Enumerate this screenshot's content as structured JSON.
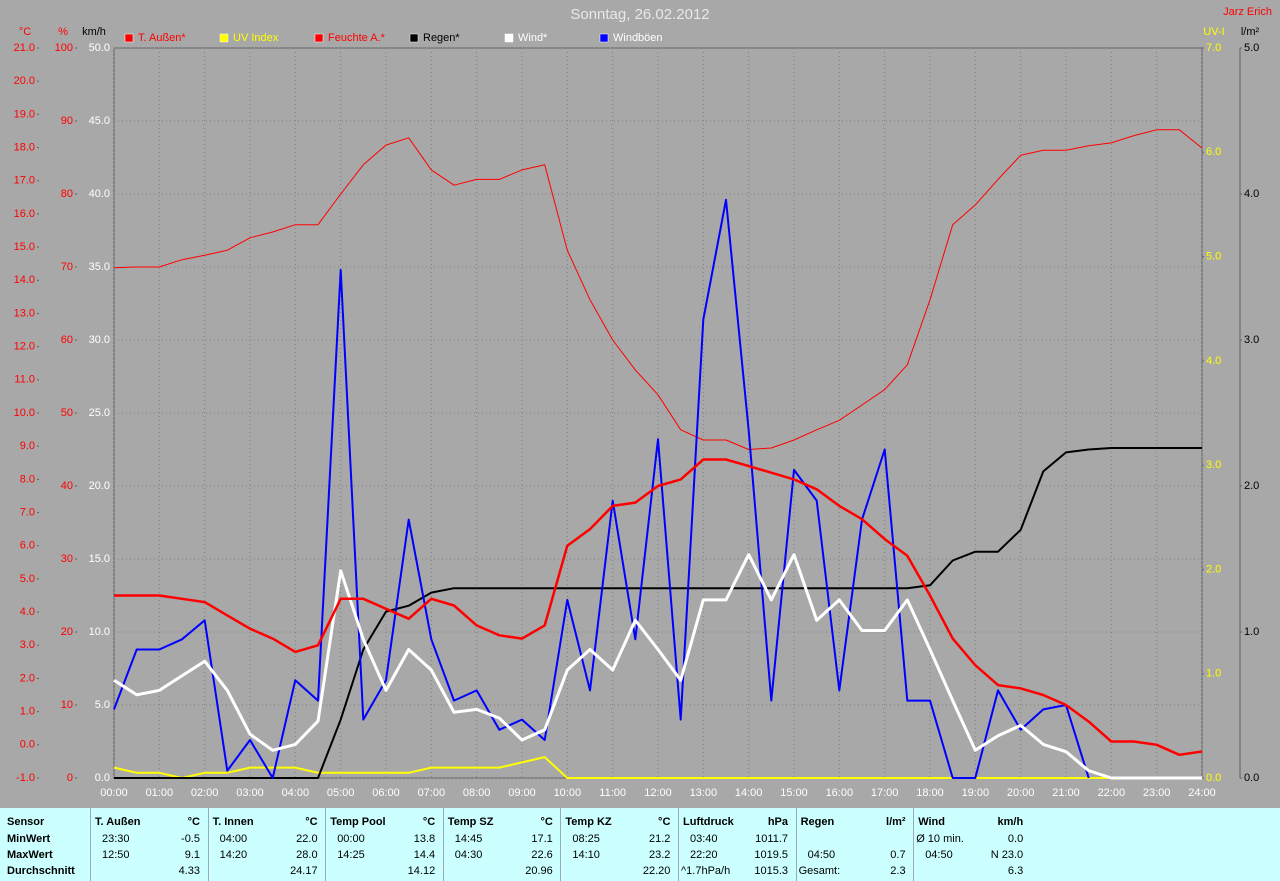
{
  "header": {
    "title": "Sonntag, 26.02.2012",
    "author": "Jarz Erich"
  },
  "chart_data": {
    "type": "line",
    "legend": "top",
    "grid": true,
    "x": [
      0,
      0.5,
      1,
      1.5,
      2,
      2.5,
      3,
      3.5,
      4,
      4.5,
      5,
      5.5,
      6,
      6.5,
      7,
      7.5,
      8,
      8.5,
      9,
      9.5,
      10,
      10.5,
      11,
      11.5,
      12,
      12.5,
      13,
      13.5,
      14,
      14.5,
      15,
      15.5,
      16,
      16.5,
      17,
      17.5,
      18,
      18.5,
      19,
      19.5,
      20,
      20.5,
      21,
      21.5,
      22,
      22.5,
      23,
      23.5,
      24
    ],
    "xlim": [
      0,
      24
    ],
    "xticks": [
      {
        "value": 0,
        "label": "00:00"
      },
      {
        "value": 1,
        "label": "01:00"
      },
      {
        "value": 2,
        "label": "02:00"
      },
      {
        "value": 3,
        "label": "03:00"
      },
      {
        "value": 4,
        "label": "04:00"
      },
      {
        "value": 5,
        "label": "05:00"
      },
      {
        "value": 6,
        "label": "06:00"
      },
      {
        "value": 7,
        "label": "07:00"
      },
      {
        "value": 8,
        "label": "08:00"
      },
      {
        "value": 9,
        "label": "09:00"
      },
      {
        "value": 10,
        "label": "10:00"
      },
      {
        "value": 11,
        "label": "11:00"
      },
      {
        "value": 12,
        "label": "12:00"
      },
      {
        "value": 13,
        "label": "13:00"
      },
      {
        "value": 14,
        "label": "14:00"
      },
      {
        "value": 15,
        "label": "15:00"
      },
      {
        "value": 16,
        "label": "16:00"
      },
      {
        "value": 17,
        "label": "17:00"
      },
      {
        "value": 18,
        "label": "18:00"
      },
      {
        "value": 19,
        "label": "19:00"
      },
      {
        "value": 20,
        "label": "20:00"
      },
      {
        "value": 21,
        "label": "21:00"
      },
      {
        "value": 22,
        "label": "22:00"
      },
      {
        "value": 23,
        "label": "23:00"
      },
      {
        "value": 24,
        "label": "24:00"
      }
    ],
    "y_label": "°C",
    "ylim": [
      -1,
      21
    ],
    "yticks": [
      {
        "value": -1,
        "label": "-1.0"
      },
      {
        "value": 0,
        "label": "0.0"
      },
      {
        "value": 1,
        "label": "1.0"
      },
      {
        "value": 2,
        "label": "2.0"
      },
      {
        "value": 3,
        "label": "3.0"
      },
      {
        "value": 4,
        "label": "4.0"
      },
      {
        "value": 5,
        "label": "5.0"
      },
      {
        "value": 6,
        "label": "6.0"
      },
      {
        "value": 7,
        "label": "7.0"
      },
      {
        "value": 8,
        "label": "8.0"
      },
      {
        "value": 9,
        "label": "9.0"
      },
      {
        "value": 10,
        "label": "10.0"
      },
      {
        "value": 11,
        "label": "11.0"
      },
      {
        "value": 12,
        "label": "12.0"
      },
      {
        "value": 13,
        "label": "13.0"
      },
      {
        "value": 14,
        "label": "14.0"
      },
      {
        "value": 15,
        "label": "15.0"
      },
      {
        "value": 16,
        "label": "16.0"
      },
      {
        "value": 17,
        "label": "17.0"
      },
      {
        "value": 18,
        "label": "18.0"
      },
      {
        "value": 19,
        "label": "19.0"
      },
      {
        "value": 20,
        "label": "20.0"
      },
      {
        "value": 21,
        "label": "21.0"
      }
    ],
    "y2_label": "%",
    "y2lim": [
      0,
      100
    ],
    "y2ticks": [
      0,
      10,
      20,
      30,
      40,
      50,
      60,
      70,
      80,
      90,
      100
    ],
    "y3_label": "km/h",
    "y3lim": [
      0,
      50
    ],
    "y3ticks": [
      {
        "value": 0,
        "label": "0.0"
      },
      {
        "value": 5,
        "label": "5.0"
      },
      {
        "value": 10,
        "label": "10.0"
      },
      {
        "value": 15,
        "label": "15.0"
      },
      {
        "value": 20,
        "label": "20.0"
      },
      {
        "value": 25,
        "label": "25.0"
      },
      {
        "value": 30,
        "label": "30.0"
      },
      {
        "value": 35,
        "label": "35.0"
      },
      {
        "value": 40,
        "label": "40.0"
      },
      {
        "value": 45,
        "label": "45.0"
      },
      {
        "value": 50,
        "label": "50.0"
      }
    ],
    "y4_label": "UV-I",
    "y4lim": [
      0,
      7
    ],
    "y4ticks": [
      {
        "value": 0,
        "label": "0.0"
      },
      {
        "value": 1,
        "label": "1.0"
      },
      {
        "value": 2,
        "label": "2.0"
      },
      {
        "value": 3,
        "label": "3.0"
      },
      {
        "value": 4,
        "label": "4.0"
      },
      {
        "value": 5,
        "label": "5.0"
      },
      {
        "value": 6,
        "label": "6.0"
      },
      {
        "value": 7,
        "label": "7.0"
      }
    ],
    "y5_label": "l/m²",
    "y5lim": [
      0,
      5
    ],
    "y5ticks": [
      {
        "value": 0,
        "label": "0.0"
      },
      {
        "value": 1,
        "label": "1.0"
      },
      {
        "value": 2,
        "label": "2.0"
      },
      {
        "value": 3,
        "label": "3.0"
      },
      {
        "value": 4,
        "label": "4.0"
      },
      {
        "value": 5,
        "label": "5.0"
      }
    ],
    "series": [
      {
        "name": "T. Außen*",
        "color": "#ff0000",
        "label_color": "#ff0000",
        "line_width": 2.5,
        "axis": "y",
        "values": [
          4.5,
          4.5,
          4.5,
          4.4,
          4.3,
          3.9,
          3.5,
          3.2,
          2.8,
          3.0,
          4.4,
          4.4,
          4.1,
          3.8,
          4.4,
          4.2,
          3.6,
          3.3,
          3.2,
          3.6,
          6.0,
          6.5,
          7.2,
          7.3,
          7.8,
          8.0,
          8.6,
          8.6,
          8.4,
          8.2,
          8.0,
          7.7,
          7.2,
          6.8,
          6.2,
          5.7,
          4.5,
          3.2,
          2.4,
          1.8,
          1.7,
          1.5,
          1.2,
          0.7,
          0.1,
          0.1,
          0.0,
          -0.3,
          -0.2
        ]
      },
      {
        "name": "UV Index",
        "color": "#ffff00",
        "label_color": "#ffff00",
        "line_width": 2,
        "axis": "y4",
        "values": [
          0.1,
          0.05,
          0.05,
          0,
          0.05,
          0.05,
          0.1,
          0.1,
          0.1,
          0.05,
          0.05,
          0.05,
          0.05,
          0.05,
          0.1,
          0.1,
          0.1,
          0.1,
          0.15,
          0.2,
          0,
          0,
          0,
          0,
          0,
          0,
          0,
          0,
          0,
          0,
          0,
          0,
          0,
          0,
          0,
          0,
          0,
          0,
          0,
          0,
          0,
          0,
          0,
          0,
          0,
          0,
          0,
          0,
          0
        ]
      },
      {
        "name": "Feuchte A.*",
        "color": "#ff0000",
        "label_color": "#ff0000",
        "line_width": 1,
        "axis": "y2",
        "values": [
          69.9,
          70,
          70,
          71,
          71.6,
          72.3,
          74,
          74.8,
          75.8,
          75.8,
          80,
          84,
          86.7,
          87.7,
          83.3,
          81.2,
          82,
          82,
          83.3,
          84,
          72.3,
          65.5,
          60,
          55.9,
          52.5,
          47.7,
          46.3,
          46.3,
          45,
          45.2,
          46.3,
          47.7,
          49,
          51.1,
          53.2,
          56.6,
          65.5,
          75.8,
          78.5,
          82,
          85.3,
          86,
          86,
          86.6,
          87,
          88,
          88.8,
          88.8,
          86.3
        ]
      },
      {
        "name": "Regen*",
        "color": "#000000",
        "label_color": "#000000",
        "line_width": 2,
        "axis": "y5",
        "values": [
          0,
          0,
          0,
          0,
          0,
          0,
          0,
          0,
          0,
          0,
          0.4,
          0.88,
          1.14,
          1.18,
          1.27,
          1.3,
          1.3,
          1.3,
          1.3,
          1.3,
          1.3,
          1.3,
          1.3,
          1.3,
          1.3,
          1.3,
          1.3,
          1.3,
          1.3,
          1.3,
          1.3,
          1.3,
          1.3,
          1.3,
          1.3,
          1.3,
          1.32,
          1.49,
          1.55,
          1.55,
          1.7,
          2.1,
          2.23,
          2.25,
          2.26,
          2.26,
          2.26,
          2.26,
          2.26
        ]
      },
      {
        "name": "Wind*",
        "color": "#ffffff",
        "label_color": "#ffffff",
        "line_width": 3,
        "axis": "y3",
        "values": [
          6.7,
          5.7,
          6,
          7,
          8,
          6,
          3,
          1.9,
          2.3,
          3.9,
          14.2,
          9.5,
          6,
          8.8,
          7.4,
          4.5,
          4.7,
          4.1,
          2.6,
          3.3,
          7.4,
          8.8,
          7.4,
          10.8,
          8.8,
          6.7,
          12.2,
          12.2,
          15.3,
          12.2,
          15.3,
          10.8,
          12.2,
          10.1,
          10.1,
          12.2,
          8.8,
          5.3,
          1.9,
          2.9,
          3.6,
          2.3,
          1.8,
          0.5,
          0,
          0,
          0,
          0,
          0
        ]
      },
      {
        "name": "Windböen",
        "color": "#0000ff",
        "label_color": "#ffffff",
        "line_width": 2,
        "axis": "y3",
        "values": [
          4.7,
          8.8,
          8.8,
          9.5,
          10.8,
          0.5,
          2.6,
          0,
          6.7,
          5.3,
          34.8,
          4,
          6.7,
          17.7,
          9.5,
          5.3,
          6,
          3.3,
          4,
          2.6,
          12.2,
          6,
          19,
          9.5,
          23.2,
          4,
          31.4,
          39.6,
          23.8,
          5.3,
          21.1,
          19,
          6,
          17.7,
          22.5,
          5.3,
          5.3,
          0,
          0,
          6,
          3.3,
          4.7,
          5,
          0,
          null,
          null,
          null,
          null,
          null
        ]
      }
    ]
  },
  "table": {
    "row_labels": [
      "Sensor",
      "MinWert",
      "MaxWert",
      "Durchschnitt"
    ],
    "columns": [
      {
        "name": "T. Außen",
        "unit": "°C",
        "rows": [
          {
            "time": "23:30",
            "value": "-0.5"
          },
          {
            "time": "12:50",
            "value": "9.1"
          },
          {
            "value": "4.33"
          }
        ]
      },
      {
        "name": "T. Innen",
        "unit": "°C",
        "rows": [
          {
            "time": "04:00",
            "value": "22.0"
          },
          {
            "time": "14:20",
            "value": "28.0"
          },
          {
            "value": "24.17"
          }
        ]
      },
      {
        "name": "Temp Pool",
        "unit": "°C",
        "rows": [
          {
            "time": "00:00",
            "value": "13.8"
          },
          {
            "time": "14:25",
            "value": "14.4"
          },
          {
            "value": "14.12"
          }
        ]
      },
      {
        "name": "Temp SZ",
        "unit": "°C",
        "rows": [
          {
            "time": "14:45",
            "value": "17.1"
          },
          {
            "time": "04:30",
            "value": "22.6"
          },
          {
            "value": "20.96"
          }
        ]
      },
      {
        "name": "Temp KZ",
        "unit": "°C",
        "rows": [
          {
            "time": "08:25",
            "value": "21.2"
          },
          {
            "time": "14:10",
            "value": "23.2"
          },
          {
            "value": "22.20"
          }
        ]
      },
      {
        "name": "Luftdruck",
        "unit": "hPa",
        "rows": [
          {
            "time": "03:40",
            "value": "1011.7"
          },
          {
            "time": "22:20",
            "value": "1019.5"
          },
          {
            "time": "^1.7hPa/h",
            "value": "1015.3"
          }
        ]
      },
      {
        "name": "Regen",
        "unit": "l/m²",
        "rows": [
          null,
          {
            "time": "04:50",
            "value": "0.7"
          },
          {
            "time": "Gesamt:",
            "value": "2.3"
          }
        ]
      },
      {
        "name": "Wind",
        "unit": "km/h",
        "rows": [
          {
            "time": "Ø 10 min.",
            "value": "0.0"
          },
          {
            "time": "04:50",
            "value": "N 23.0"
          },
          {
            "value": "6.3"
          }
        ]
      }
    ]
  }
}
